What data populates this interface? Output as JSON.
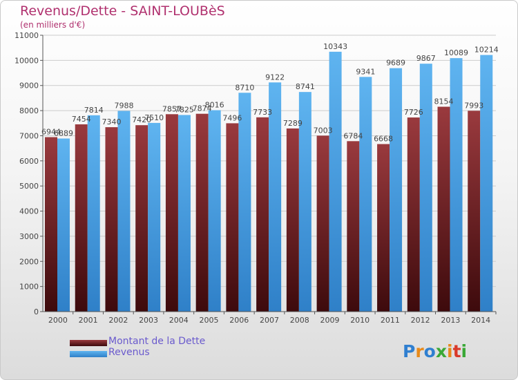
{
  "header": {
    "title": "Revenus/Dette - SAINT-LOUBèS",
    "subtitle": "(en milliers d'€)"
  },
  "legend": {
    "items": [
      {
        "label": "Montant de la Dette",
        "color": "#7a2a2e"
      },
      {
        "label": "Revenus",
        "color": "#4ba3e3"
      }
    ]
  },
  "logo": {
    "text": "Proxiti"
  },
  "colors": {
    "dette_top": "#9a3a3e",
    "dette_bottom": "#3d0a0c",
    "revenus_top": "#5fb4f0",
    "revenus_bottom": "#2f80c8",
    "value_label": "#444444",
    "grid": "#cccccc"
  },
  "chart_data": {
    "type": "bar",
    "title": "Revenus/Dette - SAINT-LOUBèS",
    "subtitle": "(en milliers d'€)",
    "categories": [
      "2000",
      "2001",
      "2002",
      "2003",
      "2004",
      "2005",
      "2006",
      "2007",
      "2008",
      "2009",
      "2010",
      "2011",
      "2012",
      "2013",
      "2014"
    ],
    "series": [
      {
        "name": "Montant de la Dette",
        "values": [
          6944,
          7454,
          7340,
          7420,
          7857,
          7874,
          7496,
          7733,
          7289,
          7003,
          6784,
          6668,
          7726,
          8154,
          7993
        ]
      },
      {
        "name": "Revenus",
        "values": [
          6889,
          7814,
          7988,
          7510,
          7825,
          8016,
          8710,
          9122,
          8741,
          10343,
          9341,
          9689,
          9867,
          10089,
          10214
        ]
      }
    ],
    "value_labels": [
      [
        "6944",
        "7454",
        "7340",
        "7420",
        "7857",
        "7874",
        "7496",
        "7733",
        "7289",
        "7003",
        "6784",
        "6668",
        "7726",
        "8154",
        "7993"
      ],
      [
        "6889",
        "7814",
        "7988",
        "7510",
        "7825",
        "8016",
        "8710",
        "9122",
        "8741",
        "10343",
        "9341",
        "9689",
        "9867",
        "10089",
        "10214"
      ]
    ],
    "y_ticks": [
      "0",
      "1000",
      "2000",
      "3000",
      "4000",
      "5000",
      "6000",
      "7000",
      "8000",
      "9000",
      "10000",
      "11000"
    ],
    "ylim": [
      0,
      11000
    ],
    "grid": true,
    "legend_position": "bottom-left"
  }
}
